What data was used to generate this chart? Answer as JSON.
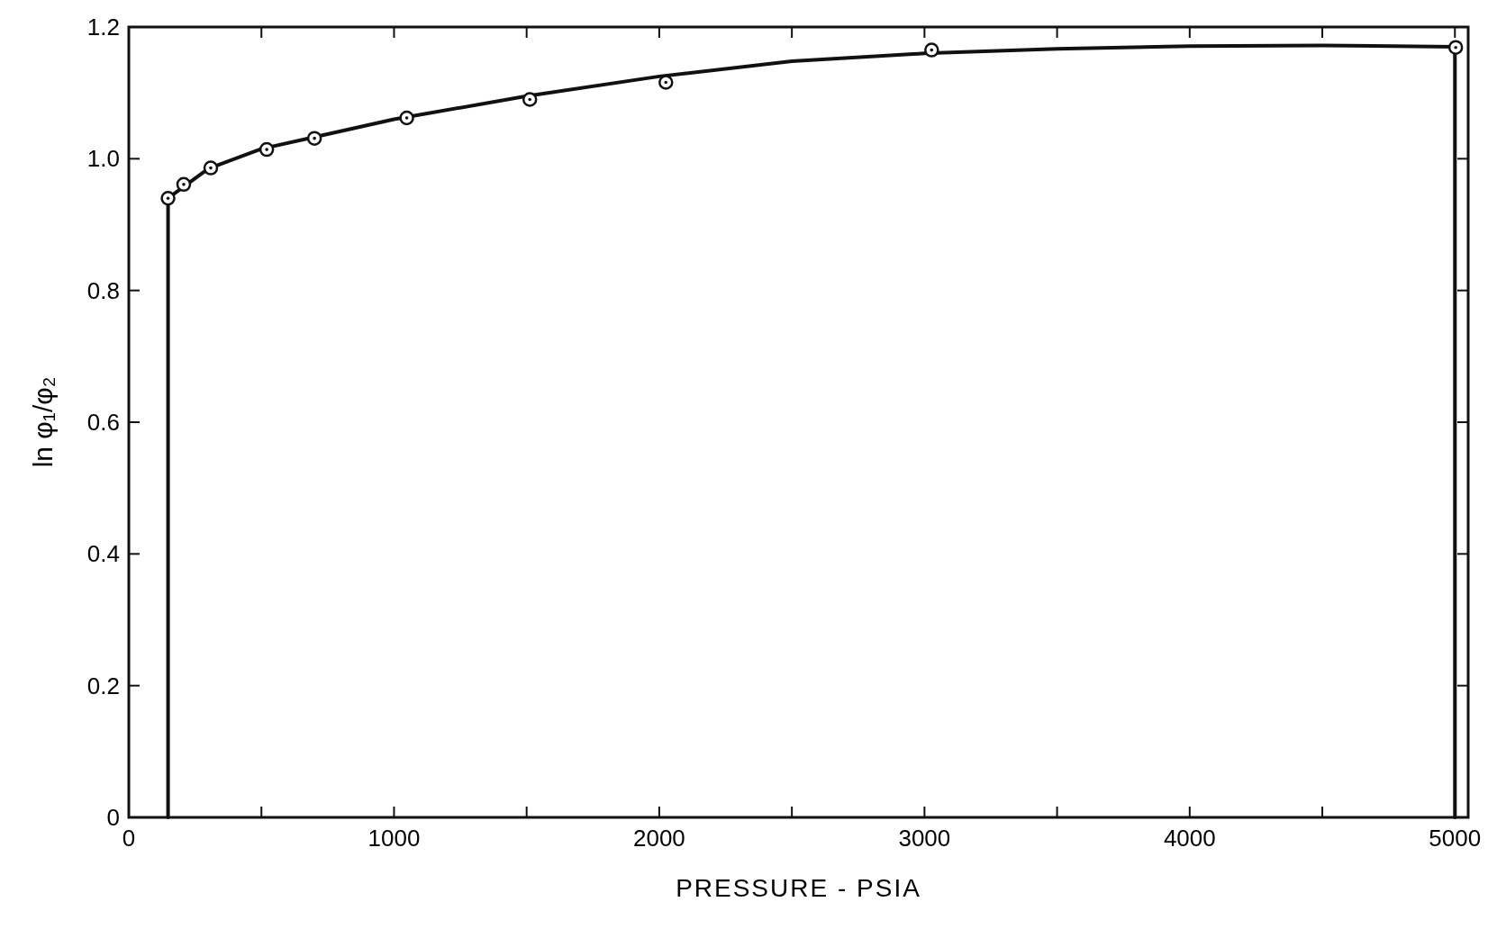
{
  "chart_data": {
    "type": "scatter",
    "xlabel": "PRESSURE - PSIA",
    "ylabel": "ln φ₁/φ₂",
    "xlim": [
      0,
      5050
    ],
    "ylim": [
      0,
      1.2
    ],
    "xticks": [
      0,
      {
        "value": 500,
        "label": null
      },
      1000,
      {
        "value": 1500,
        "label": null
      },
      2000,
      {
        "value": 2500,
        "label": null
      },
      3000,
      {
        "value": 3500,
        "label": null
      },
      4000,
      {
        "value": 4500,
        "label": null
      },
      5000
    ],
    "yticks": [
      0,
      0.2,
      0.4,
      0.6,
      0.8,
      {
        "value": 1,
        "label": "1.0"
      },
      1.2
    ],
    "grid": false,
    "series": [
      {
        "type": "line",
        "color": "#111111",
        "marker": "none",
        "line_style": "solid",
        "x": [
          148,
          148,
          300,
          500,
          700,
          1000,
          1500,
          2000,
          2500,
          3000,
          3500,
          4000,
          4500,
          5000,
          5000
        ],
        "values": [
          0,
          0.94,
          0.985,
          1.015,
          1.033,
          1.06,
          1.095,
          1.125,
          1.148,
          1.16,
          1.167,
          1.171,
          1.172,
          1.17,
          0
        ]
      },
      {
        "color": "#111111",
        "marker": "circle",
        "x": [
          148,
          207,
          309,
          520,
          700,
          1048,
          1512,
          2025,
          3027,
          5003
        ],
        "values": [
          0.94,
          0.961,
          0.986,
          1.014,
          1.031,
          1.062,
          1.09,
          1.116,
          1.165,
          1.169
        ]
      }
    ]
  }
}
